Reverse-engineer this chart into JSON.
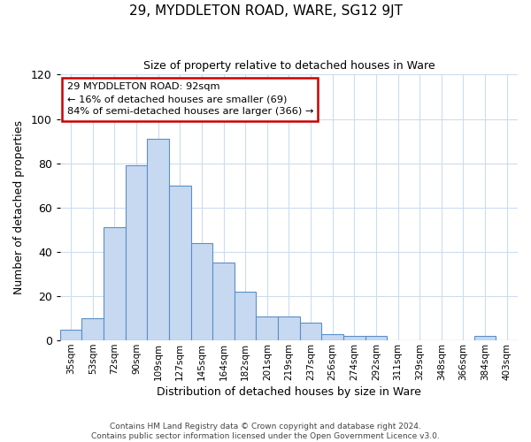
{
  "title": "29, MYDDLETON ROAD, WARE, SG12 9JT",
  "subtitle": "Size of property relative to detached houses in Ware",
  "xlabel": "Distribution of detached houses by size in Ware",
  "ylabel": "Number of detached properties",
  "bar_color": "#c6d9f1",
  "bar_edge_color": "#5b8fc8",
  "categories": [
    "35sqm",
    "53sqm",
    "72sqm",
    "90sqm",
    "109sqm",
    "127sqm",
    "145sqm",
    "164sqm",
    "182sqm",
    "201sqm",
    "219sqm",
    "237sqm",
    "256sqm",
    "274sqm",
    "292sqm",
    "311sqm",
    "329sqm",
    "348sqm",
    "366sqm",
    "384sqm",
    "403sqm"
  ],
  "values": [
    5,
    10,
    51,
    79,
    91,
    70,
    44,
    35,
    22,
    11,
    11,
    8,
    3,
    2,
    2,
    0,
    0,
    0,
    0,
    2,
    0
  ],
  "ylim": [
    0,
    120
  ],
  "yticks": [
    0,
    20,
    40,
    60,
    80,
    100,
    120
  ],
  "annotation_line1": "29 MYDDLETON ROAD: 92sqm",
  "annotation_line2": "← 16% of detached houses are smaller (69)",
  "annotation_line3": "84% of semi-detached houses are larger (366) →",
  "annotation_box_color": "#ffffff",
  "annotation_box_edge_color": "#cc0000",
  "footnote": "Contains HM Land Registry data © Crown copyright and database right 2024.\nContains public sector information licensed under the Open Government Licence v3.0.",
  "background_color": "#ffffff",
  "grid_color": "#ccdcee"
}
